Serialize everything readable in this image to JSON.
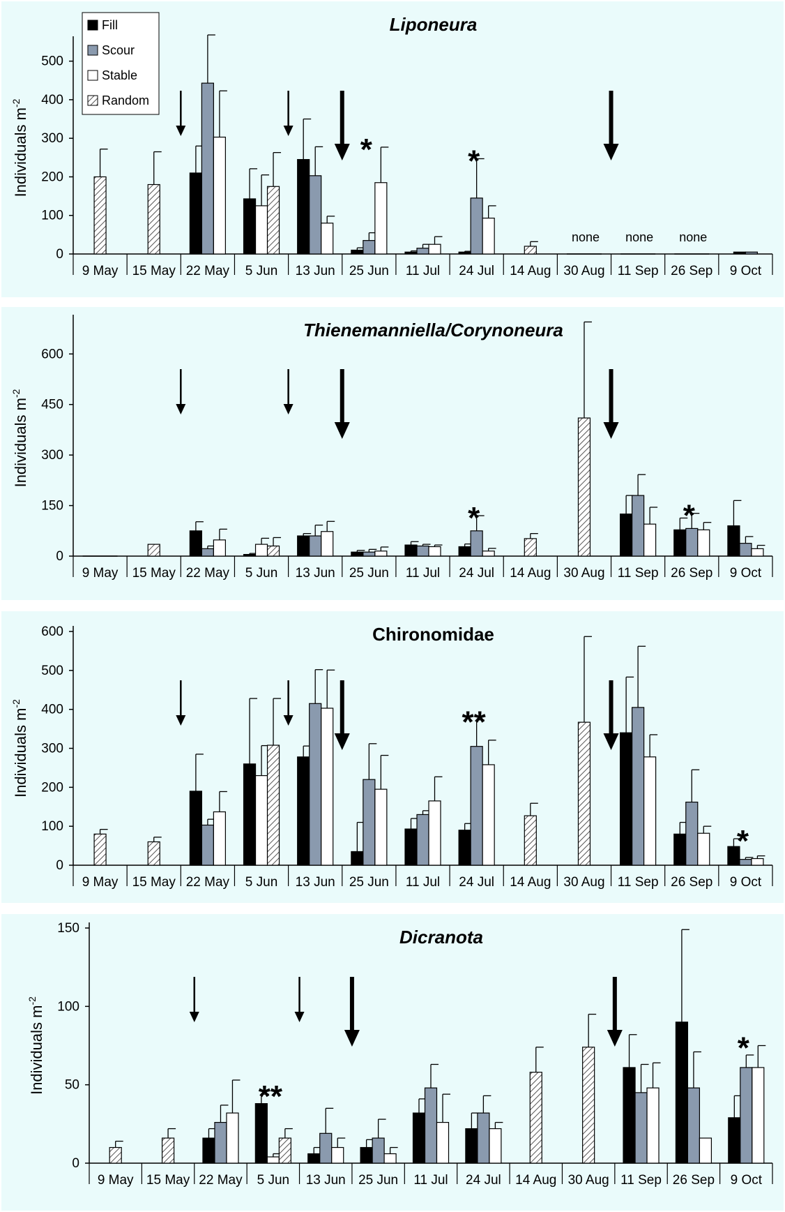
{
  "chart_data": {
    "type": "bar",
    "series_names": [
      "Fill",
      "Scour",
      "Stable",
      "Random"
    ],
    "colors": {
      "Fill": "#000000",
      "Scour": "#8a9aae",
      "Stable": "#ffffff",
      "Random": "hatch",
      "panel_background": "#eafbfb"
    },
    "legend_placement": "top-left",
    "grid": false,
    "categories": [
      "9 May",
      "15 May",
      "22 May",
      "5 Jun",
      "13 Jun",
      "25 Jun",
      "11 Jul",
      "24 Jul",
      "14 Aug",
      "30 Aug",
      "11 Sep",
      "26 Sep",
      "9 Oct"
    ],
    "panels": [
      {
        "title": "Liponeura",
        "title_italic": true,
        "ylabel": "Individuals m",
        "ylabel_sup": "-2",
        "ylim": [
          0,
          550
        ],
        "yticks": [
          0,
          100,
          200,
          300,
          400,
          500
        ],
        "values": {
          "Fill": [
            null,
            null,
            210,
            143,
            245,
            10,
            5,
            5,
            null,
            null,
            null,
            null,
            5
          ],
          "Scour": [
            null,
            null,
            443,
            null,
            203,
            35,
            15,
            145,
            null,
            null,
            null,
            null,
            5
          ],
          "Stable": [
            null,
            null,
            303,
            125,
            80,
            185,
            25,
            93,
            null,
            null,
            null,
            null,
            null
          ],
          "Random": [
            200,
            180,
            null,
            175,
            null,
            null,
            null,
            null,
            20,
            null,
            null,
            null,
            null
          ]
        },
        "errors": {
          "Fill": [
            null,
            null,
            70,
            78,
            105,
            6,
            3,
            2,
            null,
            null,
            null,
            null,
            null
          ],
          "Scour": [
            null,
            null,
            125,
            null,
            75,
            20,
            10,
            102,
            null,
            null,
            null,
            null,
            null
          ],
          "Stable": [
            null,
            null,
            120,
            80,
            18,
            92,
            20,
            32,
            null,
            null,
            null,
            null,
            null
          ],
          "Random": [
            72,
            85,
            null,
            88,
            null,
            null,
            null,
            null,
            12,
            null,
            null,
            null,
            null
          ]
        },
        "notes": [
          {
            "text": "none",
            "category": "30 Aug"
          },
          {
            "text": "none",
            "category": "11 Sep"
          },
          {
            "text": "none",
            "category": "26 Sep"
          }
        ],
        "significance": [
          {
            "text": "*",
            "category": "25 Jun"
          },
          {
            "text": "*",
            "category": "24 Jul"
          }
        ],
        "arrows": [
          {
            "between": [
              "15 May",
              "22 May"
            ],
            "size": "small"
          },
          {
            "between": [
              "5 Jun",
              "13 Jun"
            ],
            "size": "small"
          },
          {
            "between": [
              "13 Jun",
              "25 Jun"
            ],
            "size": "large"
          },
          {
            "between": [
              "30 Aug",
              "11 Sep"
            ],
            "size": "large"
          }
        ]
      },
      {
        "title": "Thienemanniella/Corynoneura",
        "title_italic": true,
        "ylabel": "Individuals m",
        "ylabel_sup": "-2",
        "ylim": [
          0,
          700
        ],
        "yticks": [
          0,
          150,
          300,
          450,
          600
        ],
        "values": {
          "Fill": [
            null,
            null,
            75,
            5,
            60,
            12,
            33,
            28,
            null,
            null,
            125,
            78,
            90
          ],
          "Scour": [
            null,
            null,
            22,
            null,
            60,
            12,
            30,
            75,
            null,
            null,
            180,
            82,
            38
          ],
          "Stable": [
            null,
            null,
            48,
            35,
            73,
            15,
            28,
            15,
            null,
            null,
            95,
            78,
            22
          ],
          "Random": [
            null,
            35,
            null,
            30,
            null,
            null,
            null,
            null,
            52,
            410,
            null,
            null,
            null
          ]
        },
        "errors": {
          "Fill": [
            null,
            null,
            27,
            3,
            7,
            5,
            10,
            8,
            null,
            null,
            55,
            35,
            75
          ],
          "Scour": [
            null,
            null,
            8,
            null,
            32,
            8,
            5,
            45,
            null,
            null,
            62,
            45,
            20
          ],
          "Stable": [
            null,
            null,
            32,
            18,
            30,
            12,
            5,
            8,
            null,
            null,
            50,
            22,
            10
          ],
          "Random": [
            null,
            0,
            null,
            25,
            null,
            null,
            null,
            null,
            15,
            285,
            null,
            null,
            null
          ]
        },
        "notes": [],
        "significance": [
          {
            "text": "*",
            "category": "24 Jul"
          },
          {
            "text": "*",
            "category": "26 Sep"
          }
        ],
        "arrows": [
          {
            "between": [
              "15 May",
              "22 May"
            ],
            "size": "small"
          },
          {
            "between": [
              "5 Jun",
              "13 Jun"
            ],
            "size": "small"
          },
          {
            "between": [
              "13 Jun",
              "25 Jun"
            ],
            "size": "large"
          },
          {
            "between": [
              "30 Aug",
              "11 Sep"
            ],
            "size": "large"
          }
        ]
      },
      {
        "title": "Chironomidae",
        "title_italic": false,
        "ylabel": "Individuals m",
        "ylabel_sup": "-2",
        "ylim": [
          0,
          600
        ],
        "yticks": [
          0,
          100,
          200,
          300,
          400,
          500,
          600
        ],
        "values": {
          "Fill": [
            null,
            null,
            190,
            260,
            278,
            35,
            93,
            90,
            null,
            null,
            340,
            80,
            48
          ],
          "Scour": [
            null,
            null,
            103,
            null,
            415,
            220,
            130,
            305,
            null,
            null,
            405,
            162,
            15
          ],
          "Stable": [
            null,
            null,
            137,
            230,
            403,
            195,
            165,
            258,
            null,
            null,
            278,
            82,
            17
          ],
          "Random": [
            80,
            60,
            null,
            308,
            null,
            null,
            null,
            null,
            127,
            367,
            null,
            null,
            null
          ]
        },
        "errors": {
          "Fill": [
            null,
            null,
            95,
            168,
            28,
            75,
            27,
            17,
            null,
            null,
            143,
            30,
            20
          ],
          "Scour": [
            null,
            null,
            15,
            null,
            87,
            92,
            10,
            68,
            null,
            null,
            157,
            83,
            5
          ],
          "Stable": [
            null,
            null,
            52,
            77,
            98,
            87,
            62,
            63,
            null,
            null,
            57,
            18,
            7
          ],
          "Random": [
            12,
            12,
            null,
            120,
            null,
            null,
            null,
            null,
            32,
            220,
            null,
            null,
            null
          ]
        },
        "notes": [],
        "significance": [
          {
            "text": "**",
            "category": "24 Jul"
          },
          {
            "text": "*",
            "category": "9 Oct"
          }
        ],
        "arrows": [
          {
            "between": [
              "15 May",
              "22 May"
            ],
            "size": "small"
          },
          {
            "between": [
              "5 Jun",
              "13 Jun"
            ],
            "size": "small"
          },
          {
            "between": [
              "13 Jun",
              "25 Jun"
            ],
            "size": "large"
          },
          {
            "between": [
              "30 Aug",
              "11 Sep"
            ],
            "size": "large"
          }
        ]
      },
      {
        "title": "Dicranota",
        "title_italic": true,
        "ylabel": "Individuals m",
        "ylabel_sup": "-2",
        "ylim": [
          0,
          150
        ],
        "yticks": [
          0,
          50,
          100,
          150
        ],
        "values": {
          "Fill": [
            null,
            null,
            16,
            38,
            6,
            10,
            32,
            22,
            null,
            null,
            61,
            90,
            29
          ],
          "Scour": [
            null,
            null,
            26,
            null,
            19,
            16,
            48,
            32,
            null,
            null,
            45,
            48,
            61
          ],
          "Stable": [
            null,
            null,
            32,
            4,
            10,
            6,
            26,
            22,
            null,
            null,
            48,
            16,
            61
          ],
          "Random": [
            10,
            16,
            null,
            16,
            null,
            null,
            null,
            null,
            58,
            74,
            null,
            null,
            null
          ]
        },
        "errors": {
          "Fill": [
            null,
            null,
            6,
            6,
            4,
            5,
            9,
            10,
            null,
            null,
            21,
            59,
            14
          ],
          "Scour": [
            null,
            null,
            11,
            null,
            16,
            12,
            15,
            11,
            null,
            null,
            18,
            23,
            8
          ],
          "Stable": [
            null,
            null,
            21,
            2,
            6,
            4,
            18,
            4,
            null,
            null,
            16,
            0,
            14
          ],
          "Random": [
            4,
            6,
            null,
            6,
            null,
            null,
            null,
            null,
            16,
            21,
            null,
            null,
            null
          ]
        },
        "notes": [],
        "significance": [
          {
            "text": "**",
            "category": "5 Jun"
          },
          {
            "text": "*",
            "category": "9 Oct"
          }
        ],
        "arrows": [
          {
            "between": [
              "15 May",
              "22 May"
            ],
            "size": "small"
          },
          {
            "between": [
              "5 Jun",
              "13 Jun"
            ],
            "size": "small"
          },
          {
            "between": [
              "13 Jun",
              "25 Jun"
            ],
            "size": "large"
          },
          {
            "between": [
              "30 Aug",
              "11 Sep"
            ],
            "size": "large"
          }
        ]
      }
    ]
  }
}
